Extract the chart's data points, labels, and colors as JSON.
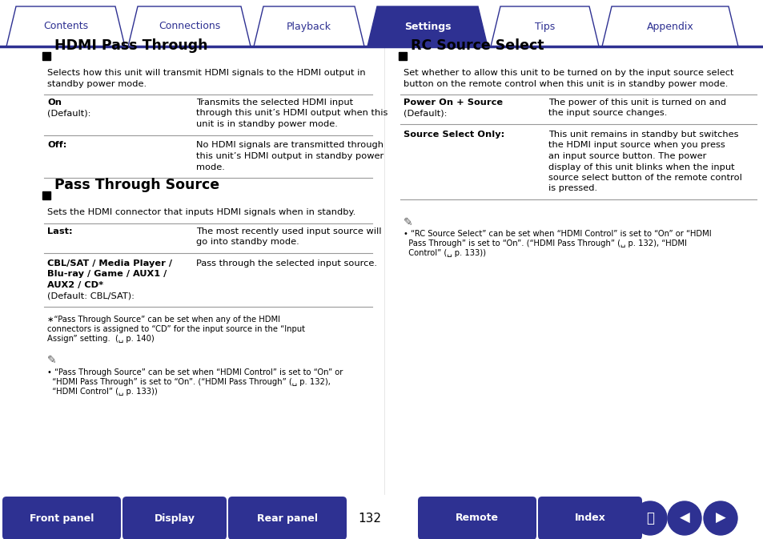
{
  "bg_color": "#ffffff",
  "tab_color_active": "#2e3192",
  "tab_color_inactive": "#ffffff",
  "tab_text_color_active": "#ffffff",
  "tab_text_color_inactive": "#2e3192",
  "tab_border_color": "#2e3192",
  "tabs": [
    "Contents",
    "Connections",
    "Playback",
    "Settings",
    "Tips",
    "Appendix"
  ],
  "active_tab": 3,
  "bottom_bar_color": "#2e3192",
  "bottom_buttons": [
    "Front panel",
    "Display",
    "Rear panel",
    "Remote",
    "Index"
  ],
  "page_number": "132",
  "section1_title": "HDMI Pass Through",
  "section1_desc": "Selects how this unit will transmit HDMI signals to the HDMI output in\nstandby power mode.",
  "section1_rows": [
    {
      "label": "On\n(Default):",
      "label_bold_lines": [
        0
      ],
      "desc": "Transmits the selected HDMI input\nthrough this unit’s HDMI output when this\nunit is in standby power mode."
    },
    {
      "label": "Off:",
      "label_bold_lines": [
        0
      ],
      "desc": "No HDMI signals are transmitted through\nthis unit’s HDMI output in standby power\nmode."
    }
  ],
  "section2_title": "Pass Through Source",
  "section2_desc": "Sets the HDMI connector that inputs HDMI signals when in standby.",
  "section2_rows": [
    {
      "label": "Last:",
      "label_bold_lines": [
        0
      ],
      "desc": "The most recently used input source will\ngo into standby mode."
    },
    {
      "label": "CBL/SAT / Media Player /\nBlu-ray / Game / AUX1 /\nAUX2 / CD*\n(Default: CBL/SAT):",
      "label_bold_lines": [
        0,
        1,
        2
      ],
      "desc": "Pass through the selected input source."
    }
  ],
  "section2_note": "∗“Pass Through Source” can be set when any of the HDMI\nconnectors is assigned to “CD” for the input source in the “Input\nAssign” setting.  (␣ p. 140)",
  "section2_bullet": "• “Pass Through Source” can be set when “HDMI Control” is set to “On” or\n  “HDMI Pass Through” is set to “On”. (“HDMI Pass Through” (␣ p. 132),\n  “HDMI Control” (␣ p. 133))",
  "section3_title": "RC Source Select",
  "section3_desc": "Set whether to allow this unit to be turned on by the input source select\nbutton on the remote control when this unit is in standby power mode.",
  "section3_rows": [
    {
      "label": "Power On + Source\n(Default):",
      "label_bold_lines": [
        0
      ],
      "desc": "The power of this unit is turned on and\nthe input source changes."
    },
    {
      "label": "Source Select Only:",
      "label_bold_lines": [
        0
      ],
      "desc": "This unit remains in standby but switches\nthe HDMI input source when you press\nan input source button. The power\ndisplay of this unit blinks when the input\nsource select button of the remote control\nis pressed."
    }
  ],
  "section3_bullet": "• “RC Source Select” can be set when “HDMI Control” is set to “On” or “HDMI\n  Pass Through” is set to “On”. (“HDMI Pass Through” (␣ p. 132), “HDMI\n  Control” (␣ p. 133))"
}
